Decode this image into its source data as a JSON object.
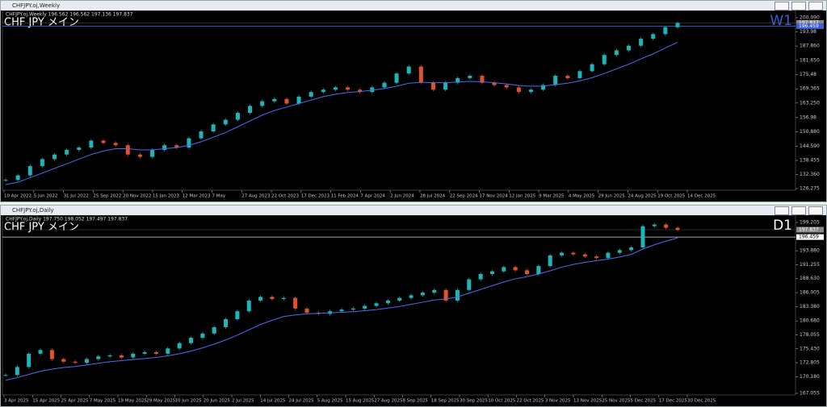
{
  "windows": [
    {
      "title": "CHFJPY.oj,Weekly",
      "info": "CHFJPY.oj,Weekly 196.562 196.562 197.136 197.837",
      "label": "CHF JPY メイン",
      "period": "W1",
      "ylim": [
        125.58,
        203.22
      ],
      "yticks": [
        {
          "value": 200.09,
          "label": "200.090"
        },
        193.98,
        {
          "value": 187.86,
          "label": "187.860"
        },
        {
          "value": 181.65,
          "label": "181.650"
        },
        175.48,
        169.365,
        {
          "value": 163.25,
          "label": "163.250"
        },
        156.98,
        {
          "value": 150.88,
          "label": "150.880"
        },
        {
          "value": 144.59,
          "label": "144.590"
        },
        138.455,
        {
          "value": 132.36,
          "label": "132.360"
        },
        126.275
      ],
      "price_labels": [
        {
          "value": 197.837,
          "label": "197.837"
        },
        {
          "value": 196.459,
          "label": "196.459"
        }
      ],
      "xlabels": [
        "10 Apr 2022",
        "5 Jun 2022",
        "31 Jul 2022",
        "25 Sep 2022",
        "20 Nov 2022",
        "15 Jan 2023",
        "12 Mar 2023",
        "7 May",
        "27 Aug 2023",
        "22 Oct 2023",
        "17 Dec 2023",
        "11 Feb 2024",
        "7 Apr 2024",
        "2 Jun 2024",
        "28 Jul 2024",
        "22 Sep 2024",
        "17 Nov 2024",
        "12 Jan 2025",
        "9 Mar 2025",
        "4 May 2025",
        "29 Jun 2025",
        "24 Aug 2025",
        "19 Oct 2025",
        "14 Dec 2025"
      ],
      "closes": [
        130,
        132,
        136,
        139,
        141,
        143,
        144,
        147,
        146,
        145,
        141,
        140,
        143,
        145,
        144,
        148,
        151,
        154,
        156,
        159,
        162,
        164,
        165,
        163,
        166,
        168,
        169,
        170,
        169,
        168,
        170,
        172,
        176,
        179,
        172,
        169,
        172,
        174,
        175,
        172,
        171,
        170,
        168,
        169,
        171,
        175,
        174,
        177,
        180,
        184,
        186,
        188,
        191,
        193,
        196,
        197.8
      ],
      "ma": [
        128,
        129,
        131,
        133,
        135,
        137,
        139,
        141,
        142.5,
        143.5,
        143.5,
        143,
        143,
        143.5,
        144,
        145,
        146.5,
        148.5,
        150.5,
        153,
        155.5,
        158,
        160,
        161.5,
        163,
        164.5,
        166,
        167,
        167.8,
        168.2,
        168.8,
        169.5,
        170.5,
        171.8,
        172.2,
        172,
        172,
        172.3,
        172.6,
        172.4,
        172,
        171.5,
        170.8,
        170.5,
        170.6,
        171.2,
        171.8,
        172.8,
        174.2,
        176,
        178,
        180,
        182.3,
        184.5,
        187,
        189.5
      ]
    },
    {
      "title": "CHFJPY.oj,Daily",
      "info": "CHFJPY.oj,Daily 197.750 198.052 197.497 197.837",
      "label": "CHF JPY メイン",
      "period": "D1",
      "ylim": [
        166.75,
        200.57
      ],
      "yticks": [
        199.205,
        {
          "value": 193.88,
          "label": "193.880"
        },
        191.255,
        {
          "value": 188.63,
          "label": "188.630"
        },
        186.005,
        {
          "value": 183.38,
          "label": "183.380"
        },
        {
          "value": 180.68,
          "label": "180.680"
        },
        178.055,
        {
          "value": 175.43,
          "label": "175.430"
        },
        172.805,
        {
          "value": 170.18,
          "label": "170.180"
        },
        167.055
      ],
      "price_labels": [
        {
          "value": 197.837,
          "label": "197.837"
        },
        {
          "value": 196.459,
          "label": "196.459"
        }
      ],
      "xlabels": [
        "3 Apr 2025",
        "15 Apr 2025",
        "25 Apr 2025",
        "7 May 2025",
        "19 May 2025",
        "29 May 2025",
        "10 Jun 2025",
        "20 Jun 2025",
        "2 Jul 2025",
        "14 Jul 2025",
        "24 Jul 2025",
        "5 Aug 2025",
        "15 Aug 2025",
        "27 Aug 2025",
        "8 Sep 2025",
        "18 Sep 2025",
        "30 Sep 2025",
        "10 Oct 2025",
        "22 Oct 2025",
        "3 Nov 2025",
        "13 Nov 2025",
        "25 Nov 2025",
        "5 Dec 2025",
        "17 Dec 2025",
        "30 Dec 2025"
      ],
      "closes": [
        170.5,
        172,
        174.5,
        175.2,
        173.5,
        173,
        172.8,
        173.5,
        174,
        174.2,
        173.8,
        174.5,
        174.8,
        174.5,
        175.5,
        176.5,
        177.5,
        178.3,
        179.5,
        181,
        182.5,
        184.5,
        185.2,
        184.8,
        185,
        183,
        182.2,
        182,
        182.5,
        182.8,
        183,
        183.5,
        184,
        184.5,
        185,
        185.5,
        186,
        186.5,
        184.5,
        186.5,
        188.5,
        189.5,
        190,
        190.8,
        190.2,
        189.5,
        191,
        193,
        193.5,
        193.2,
        192.8,
        192.5,
        193.5,
        194,
        194.5,
        198.5,
        198.8,
        198.2,
        197.8
      ],
      "ma": [
        169.5,
        170,
        170.6,
        171.2,
        171.6,
        171.9,
        172.1,
        172.4,
        172.7,
        173,
        173.2,
        173.4,
        173.6,
        173.8,
        174.1,
        174.5,
        175,
        175.6,
        176.3,
        177.1,
        178,
        179,
        180,
        180.8,
        181.5,
        181.8,
        182,
        182.1,
        182.2,
        182.3,
        182.4,
        182.6,
        182.8,
        183.1,
        183.4,
        183.8,
        184.2,
        184.6,
        184.8,
        185.2,
        185.9,
        186.6,
        187.3,
        188,
        188.6,
        189,
        189.5,
        190.1,
        190.8,
        191.3,
        191.7,
        192,
        192.3,
        192.7,
        193.2,
        194.2,
        195,
        195.7,
        196.3
      ]
    }
  ]
}
